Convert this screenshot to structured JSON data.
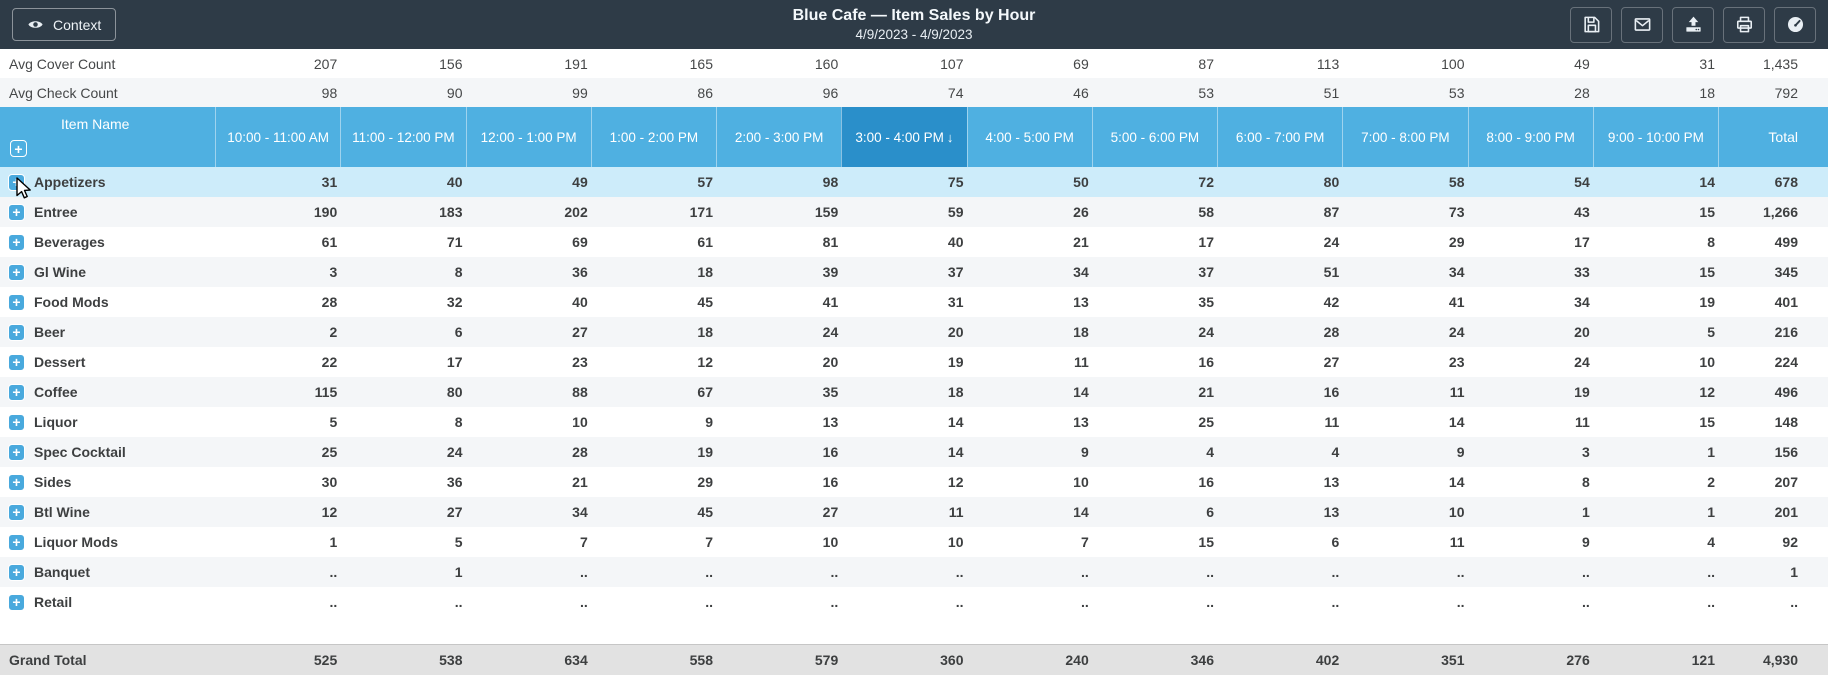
{
  "topbar": {
    "context_label": "Context",
    "title": "Blue Cafe — Item Sales by Hour",
    "date_range": "4/9/2023 - 4/9/2023",
    "icons": [
      {
        "name": "save-icon"
      },
      {
        "name": "email-icon"
      },
      {
        "name": "upload-icon"
      },
      {
        "name": "print-icon"
      },
      {
        "name": "dashboard-icon"
      }
    ]
  },
  "summary_rows": [
    {
      "label": "Avg Cover Count",
      "values": [
        "207",
        "156",
        "191",
        "165",
        "160",
        "107",
        "69",
        "87",
        "113",
        "100",
        "49",
        "31"
      ],
      "total": "1,435"
    },
    {
      "label": "Avg Check Count",
      "values": [
        "98",
        "90",
        "99",
        "86",
        "96",
        "74",
        "46",
        "53",
        "51",
        "53",
        "28",
        "18"
      ],
      "total": "792"
    }
  ],
  "table": {
    "item_name_header": "Item Name",
    "columns": [
      "10:00 - 11:00 AM",
      "11:00 - 12:00 PM",
      "12:00 - 1:00 PM",
      "1:00 - 2:00 PM",
      "2:00 - 3:00 PM",
      "3:00 - 4:00 PM",
      "4:00 - 5:00 PM",
      "5:00 - 6:00 PM",
      "6:00 - 7:00 PM",
      "7:00 - 8:00 PM",
      "8:00 - 9:00 PM",
      "9:00 - 10:00 PM"
    ],
    "sorted_column_index": 5,
    "sort_arrow": "↓",
    "total_header": "Total",
    "rows": [
      {
        "name": "Appetizers",
        "highlighted": true,
        "values": [
          "31",
          "40",
          "49",
          "57",
          "98",
          "75",
          "50",
          "72",
          "80",
          "58",
          "54",
          "14"
        ],
        "total": "678"
      },
      {
        "name": "Entree",
        "highlighted": false,
        "values": [
          "190",
          "183",
          "202",
          "171",
          "159",
          "59",
          "26",
          "58",
          "87",
          "73",
          "43",
          "15"
        ],
        "total": "1,266"
      },
      {
        "name": "Beverages",
        "highlighted": false,
        "values": [
          "61",
          "71",
          "69",
          "61",
          "81",
          "40",
          "21",
          "17",
          "24",
          "29",
          "17",
          "8"
        ],
        "total": "499"
      },
      {
        "name": "Gl Wine",
        "highlighted": false,
        "values": [
          "3",
          "8",
          "36",
          "18",
          "39",
          "37",
          "34",
          "37",
          "51",
          "34",
          "33",
          "15"
        ],
        "total": "345"
      },
      {
        "name": "Food Mods",
        "highlighted": false,
        "values": [
          "28",
          "32",
          "40",
          "45",
          "41",
          "31",
          "13",
          "35",
          "42",
          "41",
          "34",
          "19"
        ],
        "total": "401"
      },
      {
        "name": "Beer",
        "highlighted": false,
        "values": [
          "2",
          "6",
          "27",
          "18",
          "24",
          "20",
          "18",
          "24",
          "28",
          "24",
          "20",
          "5"
        ],
        "total": "216"
      },
      {
        "name": "Dessert",
        "highlighted": false,
        "values": [
          "22",
          "17",
          "23",
          "12",
          "20",
          "19",
          "11",
          "16",
          "27",
          "23",
          "24",
          "10"
        ],
        "total": "224"
      },
      {
        "name": "Coffee",
        "highlighted": false,
        "values": [
          "115",
          "80",
          "88",
          "67",
          "35",
          "18",
          "14",
          "21",
          "16",
          "11",
          "19",
          "12"
        ],
        "total": "496"
      },
      {
        "name": "Liquor",
        "highlighted": false,
        "values": [
          "5",
          "8",
          "10",
          "9",
          "13",
          "14",
          "13",
          "25",
          "11",
          "14",
          "11",
          "15"
        ],
        "total": "148"
      },
      {
        "name": "Spec Cocktail",
        "highlighted": false,
        "values": [
          "25",
          "24",
          "28",
          "19",
          "16",
          "14",
          "9",
          "4",
          "4",
          "9",
          "3",
          "1"
        ],
        "total": "156"
      },
      {
        "name": "Sides",
        "highlighted": false,
        "values": [
          "30",
          "36",
          "21",
          "29",
          "16",
          "12",
          "10",
          "16",
          "13",
          "14",
          "8",
          "2"
        ],
        "total": "207"
      },
      {
        "name": "Btl Wine",
        "highlighted": false,
        "values": [
          "12",
          "27",
          "34",
          "45",
          "27",
          "11",
          "14",
          "6",
          "13",
          "10",
          "1",
          "1"
        ],
        "total": "201"
      },
      {
        "name": "Liquor Mods",
        "highlighted": false,
        "values": [
          "1",
          "5",
          "7",
          "7",
          "10",
          "10",
          "7",
          "15",
          "6",
          "11",
          "9",
          "4"
        ],
        "total": "92"
      },
      {
        "name": "Banquet",
        "highlighted": false,
        "values": [
          "..",
          "1",
          "..",
          "..",
          "..",
          "..",
          "..",
          "..",
          "..",
          "..",
          "..",
          ".."
        ],
        "total": "1"
      },
      {
        "name": "Retail",
        "highlighted": false,
        "values": [
          "..",
          "..",
          "..",
          "..",
          "..",
          "..",
          "..",
          "..",
          "..",
          "..",
          "..",
          ".."
        ],
        "total": ".."
      }
    ],
    "grand_total": {
      "label": "Grand Total",
      "values": [
        "525",
        "538",
        "634",
        "558",
        "579",
        "360",
        "240",
        "346",
        "402",
        "351",
        "276",
        "121"
      ],
      "total": "4,930"
    }
  },
  "colors": {
    "topbar_bg": "#2e3b47",
    "header_blue": "#4fb0e1",
    "header_blue_sorted": "#2a8fca",
    "row_highlight": "#cdecfa",
    "row_alt": "#f4f6f8",
    "grand_total_bg": "#e2e2e2",
    "plus_icon_blue": "#49a9dd"
  }
}
